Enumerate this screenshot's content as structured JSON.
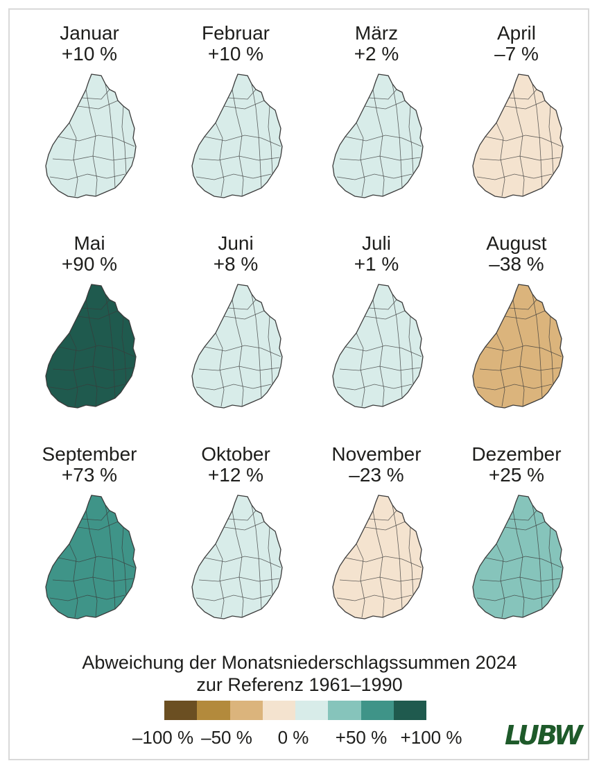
{
  "months": [
    {
      "name": "Januar",
      "value": "+10 %",
      "level": 0.1
    },
    {
      "name": "Februar",
      "value": "+10 %",
      "level": 0.1
    },
    {
      "name": "März",
      "value": "+2 %",
      "level": 0.02
    },
    {
      "name": "April",
      "value": "–7 %",
      "level": -0.07
    },
    {
      "name": "Mai",
      "value": "+90 %",
      "level": 0.9
    },
    {
      "name": "Juni",
      "value": "+8 %",
      "level": 0.08
    },
    {
      "name": "Juli",
      "value": "+1 %",
      "level": 0.01
    },
    {
      "name": "August",
      "value": "–38 %",
      "level": -0.38
    },
    {
      "name": "September",
      "value": "+73 %",
      "level": 0.73
    },
    {
      "name": "Oktober",
      "value": "+12 %",
      "level": 0.12
    },
    {
      "name": "November",
      "value": "–23 %",
      "level": -0.23
    },
    {
      "name": "Dezember",
      "value": "+25 %",
      "level": 0.25
    }
  ],
  "caption": {
    "line1": "Abweichung der Monatsniederschlagssummen 2024",
    "line2": "zur Referenz 1961–1990"
  },
  "legend": {
    "colors": [
      "#6b4f22",
      "#b38a3c",
      "#dbb47c",
      "#f4e3cf",
      "#d8ece9",
      "#86c4bb",
      "#3f9488",
      "#1f5a4e"
    ],
    "ticks": [
      "–100 %",
      "–50 %",
      "0 %",
      "+50 %",
      "+100 %"
    ]
  },
  "logo": "LUBW"
}
